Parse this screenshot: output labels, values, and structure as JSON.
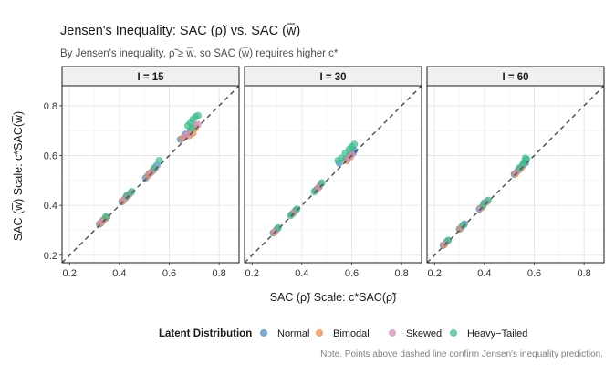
{
  "chart_data": {
    "type": "scatter",
    "title": "Jensen's Inequality: SAC (ρ̃) vs. SAC (w̅)",
    "subtitle": "By Jensen's inequality, ρ̃ ≥ w̅, so SAC (w̅) requires higher c*",
    "xlabel": "SAC (ρ̃) Scale: c*SAC(ρ̃)",
    "ylabel": "SAC (w̅) Scale: c*SAC(w̅)",
    "xlim": [
      0.17,
      0.88
    ],
    "ylim": [
      0.17,
      0.88
    ],
    "x_ticks": [
      0.2,
      0.4,
      0.6,
      0.8
    ],
    "y_ticks": [
      0.2,
      0.4,
      0.6,
      0.8
    ],
    "tick_labels_x": [
      "0.2",
      "0.4",
      "0.6",
      "0.8"
    ],
    "tick_labels_y": [
      "0.2",
      "0.4",
      "0.6",
      "0.8"
    ],
    "reference_line": "y = x (dashed)",
    "legend_title": "Latent Distribution",
    "legend_position": "bottom",
    "caption": "Note. Points above dashed line confirm Jensen's inequality prediction.",
    "series_colors": {
      "Normal": "#4e8fc7",
      "Bimodal": "#ef8a47",
      "Skewed": "#d291b5",
      "Heavy−Tailed": "#3cbf8c"
    },
    "legend_entries": [
      "Normal",
      "Bimodal",
      "Skewed",
      "Heavy−Tailed"
    ],
    "panels": [
      {
        "label": "I = 15",
        "series": [
          {
            "name": "Normal",
            "points": [
              [
                0.32,
                0.325
              ],
              [
                0.335,
                0.34
              ],
              [
                0.35,
                0.352
              ],
              [
                0.41,
                0.415
              ],
              [
                0.425,
                0.43
              ],
              [
                0.44,
                0.445
              ],
              [
                0.505,
                0.51
              ],
              [
                0.52,
                0.528
              ],
              [
                0.535,
                0.54
              ],
              [
                0.55,
                0.56
              ],
              [
                0.645,
                0.665
              ],
              [
                0.665,
                0.685
              ],
              [
                0.685,
                0.7
              ]
            ]
          },
          {
            "name": "Bimodal",
            "points": [
              [
                0.325,
                0.328
              ],
              [
                0.345,
                0.348
              ],
              [
                0.415,
                0.418
              ],
              [
                0.435,
                0.44
              ],
              [
                0.515,
                0.52
              ],
              [
                0.53,
                0.535
              ],
              [
                0.655,
                0.67
              ],
              [
                0.68,
                0.68
              ],
              [
                0.695,
                0.69
              ],
              [
                0.705,
                0.71
              ]
            ]
          },
          {
            "name": "Skewed",
            "points": [
              [
                0.33,
                0.335
              ],
              [
                0.42,
                0.425
              ],
              [
                0.445,
                0.45
              ],
              [
                0.525,
                0.53
              ],
              [
                0.545,
                0.55
              ],
              [
                0.665,
                0.675
              ],
              [
                0.68,
                0.69
              ],
              [
                0.705,
                0.72
              ],
              [
                0.715,
                0.725
              ]
            ]
          },
          {
            "name": "Heavy−Tailed",
            "points": [
              [
                0.345,
                0.355
              ],
              [
                0.43,
                0.44
              ],
              [
                0.45,
                0.455
              ],
              [
                0.54,
                0.55
              ],
              [
                0.56,
                0.58
              ],
              [
                0.675,
                0.72
              ],
              [
                0.685,
                0.73
              ],
              [
                0.695,
                0.745
              ],
              [
                0.705,
                0.755
              ],
              [
                0.715,
                0.76
              ],
              [
                0.69,
                0.71
              ]
            ]
          }
        ]
      },
      {
        "label": "I = 30",
        "series": [
          {
            "name": "Normal",
            "points": [
              [
                0.285,
                0.29
              ],
              [
                0.3,
                0.305
              ],
              [
                0.36,
                0.365
              ],
              [
                0.375,
                0.38
              ],
              [
                0.455,
                0.46
              ],
              [
                0.47,
                0.475
              ],
              [
                0.55,
                0.57
              ],
              [
                0.575,
                0.585
              ],
              [
                0.59,
                0.6
              ],
              [
                0.605,
                0.61
              ],
              [
                0.61,
                0.62
              ]
            ]
          },
          {
            "name": "Bimodal",
            "points": [
              [
                0.29,
                0.293
              ],
              [
                0.365,
                0.368
              ],
              [
                0.46,
                0.465
              ],
              [
                0.58,
                0.58
              ],
              [
                0.595,
                0.595
              ]
            ]
          },
          {
            "name": "Skewed",
            "points": [
              [
                0.295,
                0.3
              ],
              [
                0.37,
                0.375
              ],
              [
                0.465,
                0.47
              ],
              [
                0.475,
                0.485
              ],
              [
                0.585,
                0.59
              ],
              [
                0.6,
                0.605
              ]
            ]
          },
          {
            "name": "Heavy−Tailed",
            "points": [
              [
                0.305,
                0.31
              ],
              [
                0.355,
                0.36
              ],
              [
                0.38,
                0.385
              ],
              [
                0.45,
                0.455
              ],
              [
                0.48,
                0.49
              ],
              [
                0.545,
                0.58
              ],
              [
                0.56,
                0.59
              ],
              [
                0.575,
                0.61
              ],
              [
                0.59,
                0.625
              ],
              [
                0.6,
                0.635
              ],
              [
                0.61,
                0.645
              ]
            ]
          }
        ]
      },
      {
        "label": "I = 60",
        "series": [
          {
            "name": "Normal",
            "points": [
              [
                0.235,
                0.24
              ],
              [
                0.25,
                0.255
              ],
              [
                0.3,
                0.305
              ],
              [
                0.32,
                0.325
              ],
              [
                0.38,
                0.385
              ],
              [
                0.4,
                0.41
              ],
              [
                0.52,
                0.525
              ],
              [
                0.535,
                0.54
              ],
              [
                0.55,
                0.555
              ],
              [
                0.565,
                0.57
              ]
            ]
          },
          {
            "name": "Bimodal",
            "points": [
              [
                0.24,
                0.243
              ],
              [
                0.305,
                0.308
              ],
              [
                0.39,
                0.392
              ],
              [
                0.525,
                0.527
              ],
              [
                0.545,
                0.547
              ]
            ]
          },
          {
            "name": "Skewed",
            "points": [
              [
                0.245,
                0.25
              ],
              [
                0.31,
                0.315
              ],
              [
                0.385,
                0.39
              ],
              [
                0.41,
                0.415
              ],
              [
                0.53,
                0.535
              ],
              [
                0.555,
                0.56
              ]
            ]
          },
          {
            "name": "Heavy−Tailed",
            "points": [
              [
                0.255,
                0.26
              ],
              [
                0.315,
                0.32
              ],
              [
                0.395,
                0.4
              ],
              [
                0.415,
                0.42
              ],
              [
                0.54,
                0.55
              ],
              [
                0.555,
                0.565
              ],
              [
                0.56,
                0.575
              ],
              [
                0.57,
                0.585
              ],
              [
                0.565,
                0.59
              ]
            ]
          }
        ]
      }
    ]
  }
}
